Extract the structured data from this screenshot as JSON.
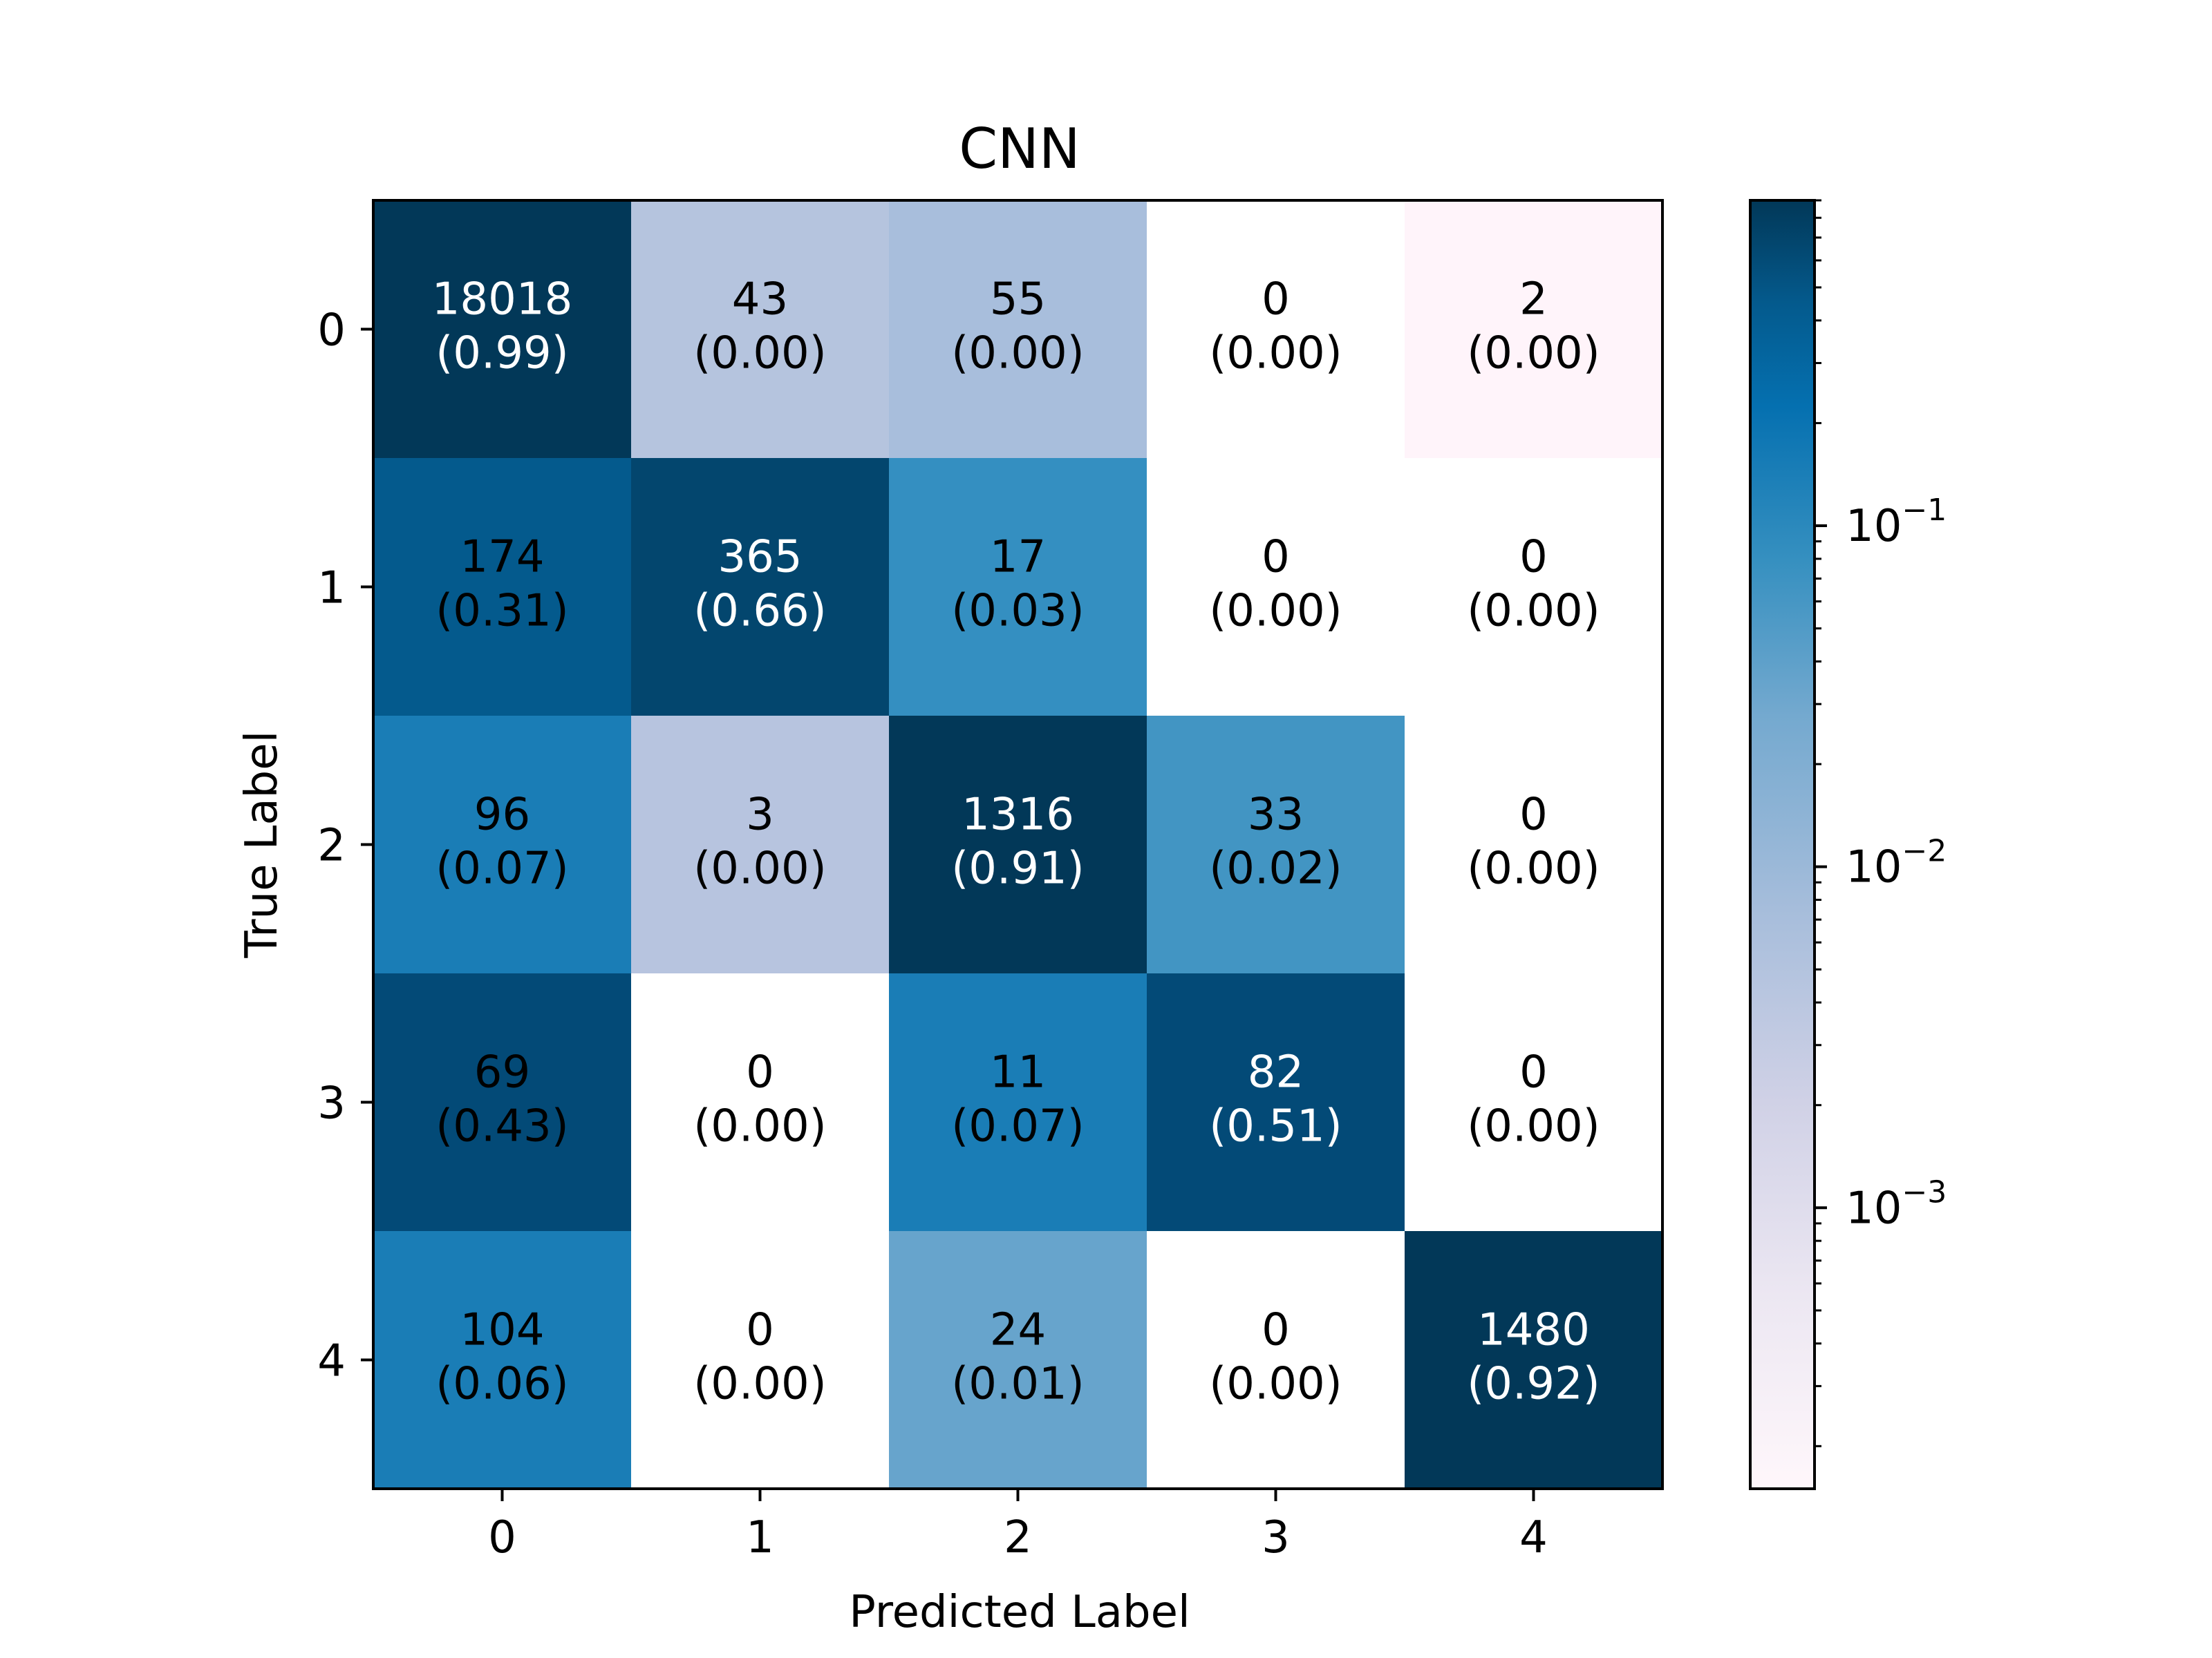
{
  "chart_data": {
    "type": "heatmap",
    "title": "CNN",
    "xlabel": "Predicted Label",
    "ylabel": "True Label",
    "x_categories": [
      "0",
      "1",
      "2",
      "3",
      "4"
    ],
    "y_categories": [
      "0",
      "1",
      "2",
      "3",
      "4"
    ],
    "counts": [
      [
        18018,
        43,
        55,
        0,
        2
      ],
      [
        174,
        365,
        17,
        0,
        0
      ],
      [
        96,
        3,
        1316,
        33,
        0
      ],
      [
        69,
        0,
        11,
        82,
        0
      ],
      [
        104,
        0,
        24,
        0,
        1480
      ]
    ],
    "normalized_labels": [
      [
        "(0.99)",
        "(0.00)",
        "(0.00)",
        "(0.00)",
        "(0.00)"
      ],
      [
        "(0.31)",
        "(0.66)",
        "(0.03)",
        "(0.00)",
        "(0.00)"
      ],
      [
        "(0.07)",
        "(0.00)",
        "(0.91)",
        "(0.02)",
        "(0.00)"
      ],
      [
        "(0.43)",
        "(0.00)",
        "(0.07)",
        "(0.51)",
        "(0.00)"
      ],
      [
        "(0.06)",
        "(0.00)",
        "(0.01)",
        "(0.00)",
        "(0.92)"
      ]
    ],
    "colorbar": {
      "scale": "log",
      "colormap": "PuBu",
      "ticks": [
        {
          "base": "10",
          "exponent": "−1",
          "value": 0.1
        },
        {
          "base": "10",
          "exponent": "−2",
          "value": 0.01
        },
        {
          "base": "10",
          "exponent": "−3",
          "value": 0.001
        }
      ],
      "range": [
        0.00015,
        0.9
      ]
    },
    "colors": {
      "darkest": "#023858",
      "dark_blue": "#045a8d",
      "medium_blue": "#1a7db6",
      "mid_blue": "#4295c3",
      "light_blue": "#67a4cc",
      "pale_blue": "#a8bedc",
      "pale_lavender": "#b5c4de",
      "faint_pink": "#fff4fa",
      "white": "#ffffff"
    },
    "cell_colors": [
      [
        "#023858",
        "#b5c4de",
        "#a8bedc",
        "#ffffff",
        "#fff4fa"
      ],
      [
        "#045a8d",
        "#03466e",
        "#348fc1",
        "#ffffff",
        "#ffffff"
      ],
      [
        "#1a7db6",
        "#b7c4df",
        "#023858",
        "#4295c3",
        "#ffffff"
      ],
      [
        "#034a77",
        "#ffffff",
        "#1a7db6",
        "#034a77",
        "#ffffff"
      ],
      [
        "#1a7db6",
        "#ffffff",
        "#67a4cc",
        "#ffffff",
        "#023858"
      ]
    ],
    "cell_text_colors": [
      [
        "#ffffff",
        "#000000",
        "#000000",
        "#000000",
        "#000000"
      ],
      [
        "#000000",
        "#ffffff",
        "#000000",
        "#000000",
        "#000000"
      ],
      [
        "#000000",
        "#000000",
        "#ffffff",
        "#000000",
        "#000000"
      ],
      [
        "#000000",
        "#000000",
        "#000000",
        "#ffffff",
        "#000000"
      ],
      [
        "#000000",
        "#000000",
        "#000000",
        "#000000",
        "#ffffff"
      ]
    ],
    "grid": false
  }
}
